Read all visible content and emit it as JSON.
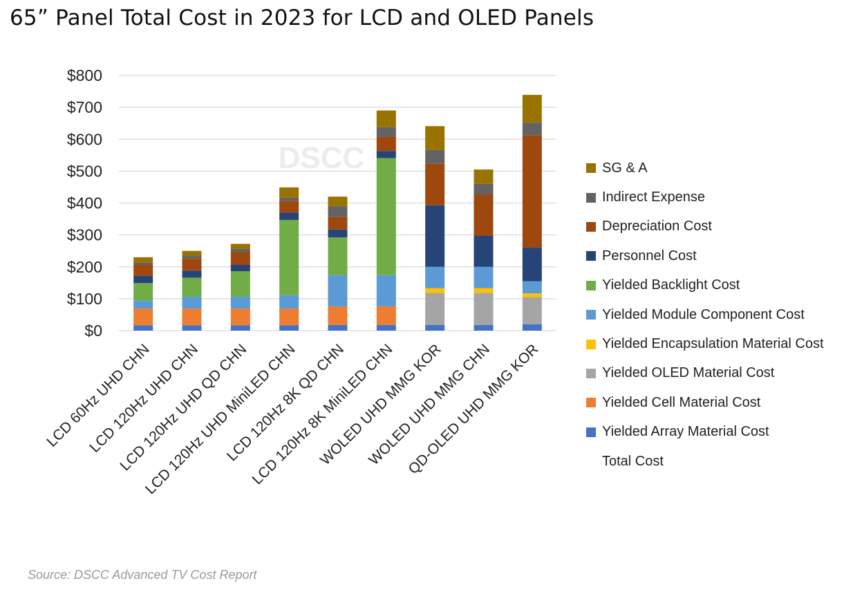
{
  "title": "65” Panel Total Cost in 2023 for LCD and OLED Panels",
  "source": "Source: DSCC Advanced TV Cost Report",
  "chart_data": {
    "type": "bar",
    "stacked": true,
    "watermark": "DSCC",
    "categories": [
      "LCD 60Hz UHD  CHN",
      "LCD 120Hz UHD  CHN",
      "LCD 120Hz UHD QD  CHN",
      "LCD 120Hz UHD MiniLED CHN",
      "LCD 120Hz 8K QD  CHN",
      "LCD 120Hz 8K MiniLED CHN",
      "WOLED UHD  MMG  KOR",
      "WOLED UHD  MMG  CHN",
      "QD-OLED UHD  MMG  KOR"
    ],
    "series": [
      {
        "name": "Yielded Array Material Cost",
        "color": "#4472c4",
        "values": [
          17,
          17,
          17,
          17,
          18,
          18,
          18,
          18,
          20
        ]
      },
      {
        "name": "Yielded Cell Material Cost",
        "color": "#ed7d31",
        "values": [
          52,
          52,
          52,
          52,
          58,
          58,
          0,
          0,
          0
        ]
      },
      {
        "name": "Yielded OLED Material Cost",
        "color": "#a5a5a5",
        "values": [
          0,
          0,
          0,
          0,
          0,
          0,
          100,
          100,
          85
        ]
      },
      {
        "name": "Yielded Encapsulation Material Cost",
        "color": "#ffc000",
        "values": [
          0,
          0,
          0,
          0,
          0,
          0,
          15,
          15,
          12
        ]
      },
      {
        "name": "Yielded Module Component Cost",
        "color": "#5b9bd5",
        "values": [
          25,
          37,
          37,
          42,
          98,
          98,
          67,
          67,
          38
        ]
      },
      {
        "name": "Yielded Backlight Cost",
        "color": "#70ad47",
        "values": [
          55,
          60,
          80,
          236,
          118,
          367,
          0,
          0,
          0
        ]
      },
      {
        "name": "Personnel Cost",
        "color": "#264478",
        "values": [
          23,
          22,
          20,
          23,
          25,
          22,
          193,
          97,
          105
        ]
      },
      {
        "name": "Depreciation Cost",
        "color": "#9e480e",
        "values": [
          35,
          37,
          40,
          37,
          40,
          45,
          130,
          130,
          352
        ]
      },
      {
        "name": "Indirect Expense",
        "color": "#636363",
        "values": [
          7,
          8,
          10,
          10,
          33,
          30,
          43,
          33,
          40
        ]
      },
      {
        "name": "SG & A",
        "color": "#997300",
        "values": [
          16,
          17,
          16,
          32,
          30,
          52,
          75,
          45,
          87
        ]
      }
    ],
    "totals_label": "Total Cost",
    "totals": [
      230,
      250,
      272,
      449,
      420,
      690,
      641,
      505,
      739
    ],
    "ylim": [
      0,
      800
    ],
    "yticks": [
      0,
      100,
      200,
      300,
      400,
      500,
      600,
      700,
      800
    ],
    "ytick_labels": [
      "$0",
      "$100",
      "$200",
      "$300",
      "$400",
      "$500",
      "$600",
      "$700",
      "$800"
    ],
    "xlabel": "",
    "ylabel": "",
    "grid": true,
    "legend_position": "right"
  },
  "legend": {
    "items": [
      {
        "label": "SG & A",
        "color": "#997300"
      },
      {
        "label": "Indirect Expense",
        "color": "#636363"
      },
      {
        "label": "Depreciation Cost",
        "color": "#9e480e"
      },
      {
        "label": "Personnel Cost",
        "color": "#264478"
      },
      {
        "label": "Yielded Backlight Cost",
        "color": "#70ad47"
      },
      {
        "label": "Yielded Module Component Cost",
        "color": "#5b9bd5"
      },
      {
        "label": "Yielded Encapsulation Material Cost",
        "color": "#ffc000"
      },
      {
        "label": "Yielded OLED Material Cost",
        "color": "#a5a5a5"
      },
      {
        "label": "Yielded Cell Material Cost",
        "color": "#ed7d31"
      },
      {
        "label": "Yielded Array Material Cost",
        "color": "#4472c4"
      },
      {
        "label": "Total Cost",
        "color": ""
      }
    ]
  }
}
